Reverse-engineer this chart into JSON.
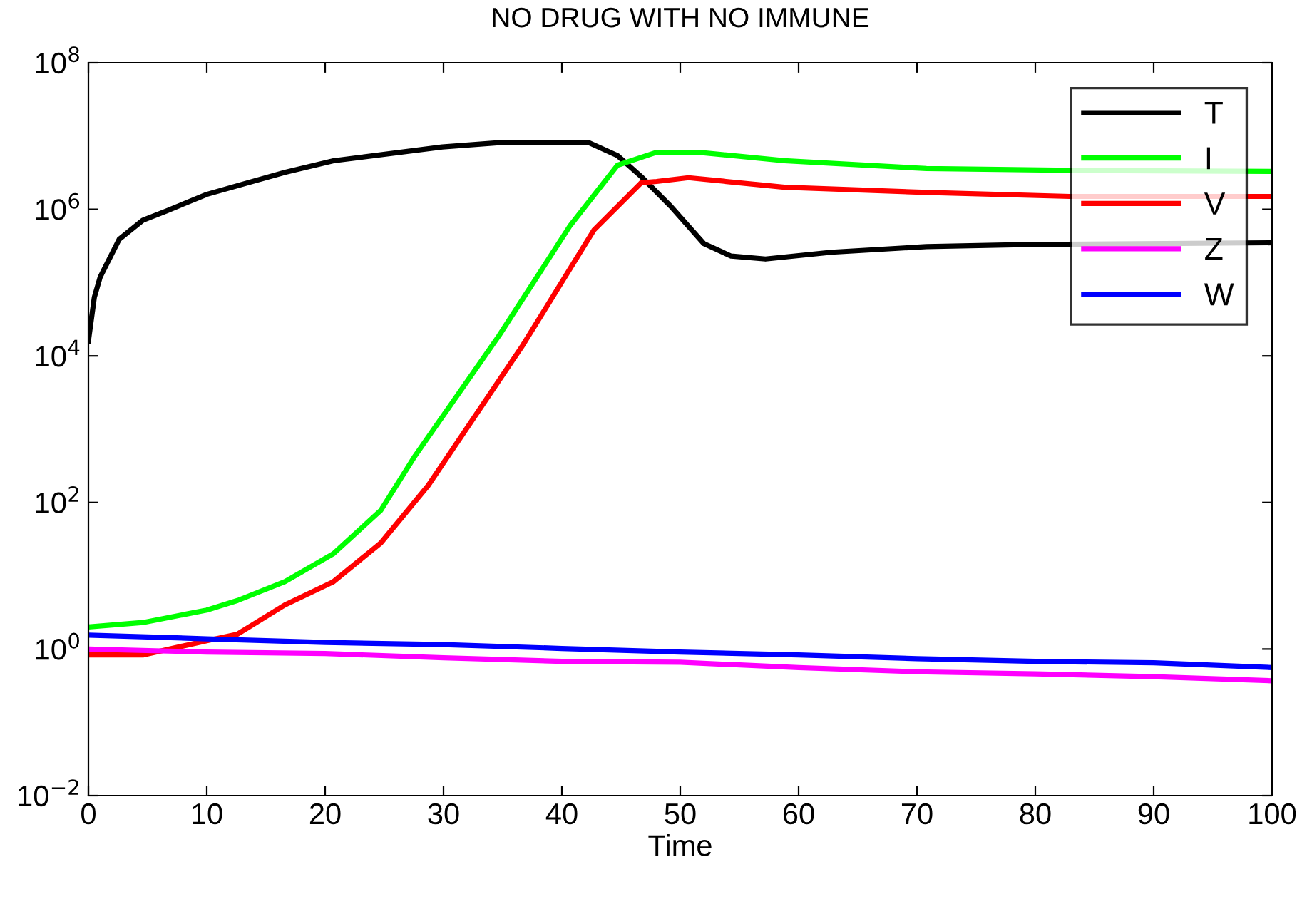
{
  "chart_data": {
    "type": "line",
    "title": "NO DRUG WITH NO IMMUNE",
    "xlabel": "Time",
    "xlim": [
      0,
      100
    ],
    "xticks": [
      0,
      10,
      20,
      30,
      40,
      50,
      60,
      70,
      80,
      90,
      100
    ],
    "log": true,
    "ylim": [
      0.01,
      100000000
    ],
    "yticks": [
      {
        "value": 0.01,
        "label": "10$^{−2}$"
      },
      {
        "value": 1,
        "label": "10$^{0}$"
      },
      {
        "value": 100,
        "label": "10$^{2}$"
      },
      {
        "value": 10000,
        "label": "10$^{4}$"
      },
      {
        "value": 1000000,
        "label": "10$^{6}$"
      },
      {
        "value": 100000000,
        "label": "10$^{8}$"
      }
    ],
    "grid": false,
    "legend": "top right",
    "marker": "none",
    "line_style": "solid",
    "series": [
      {
        "name": "T",
        "color": "#000000",
        "x": [
          0,
          0.5,
          1,
          2.6,
          4.6,
          6.6,
          10,
          16.6,
          20.7,
          29.9,
          34.7,
          42.3,
          44.7,
          46.7,
          49.2,
          52,
          54.3,
          57.2,
          62.8,
          70.8,
          78.9,
          100
        ],
        "values": [
          16000,
          63000,
          120000,
          390000,
          710000,
          950000,
          1600000,
          3200000,
          4600000,
          7100000,
          8100000,
          8100000,
          5400000,
          2800000,
          1100000,
          340000,
          230000,
          210000,
          260000,
          310000,
          330000,
          350000
        ]
      },
      {
        "name": "I",
        "color": "#00ff00",
        "x": [
          0,
          4.6,
          10,
          12.6,
          16.6,
          20.7,
          24.7,
          27.5,
          34.7,
          40.7,
          44.7,
          48,
          52,
          58.8,
          70.8,
          82.9,
          100
        ],
        "values": [
          2.0,
          2.3,
          3.4,
          4.6,
          8.3,
          20,
          78,
          410,
          19000,
          600000,
          4000000,
          6000000,
          5900000,
          4600000,
          3600000,
          3400000,
          3300000
        ]
      },
      {
        "name": "V",
        "color": "#ff0000",
        "x": [
          0,
          4.6,
          10,
          12.6,
          16.6,
          20.7,
          24.7,
          28.7,
          30.3,
          36.7,
          42.7,
          46.7,
          48,
          50.7,
          58.8,
          70.8,
          82.9,
          100
        ],
        "values": [
          0.83,
          0.83,
          1.3,
          1.6,
          4.0,
          8.3,
          28,
          170,
          410,
          14000,
          520000,
          2300000,
          2400000,
          2700000,
          2000000,
          1700000,
          1500000,
          1500000
        ]
      },
      {
        "name": "Z",
        "color": "#ff00ff",
        "x": [
          0,
          10,
          20,
          30,
          40,
          50,
          60,
          70,
          80,
          90,
          100
        ],
        "values": [
          1.0,
          0.91,
          0.87,
          0.76,
          0.68,
          0.66,
          0.56,
          0.49,
          0.46,
          0.42,
          0.37
        ]
      },
      {
        "name": "W",
        "color": "#0000ff",
        "x": [
          0,
          10,
          20,
          30,
          40,
          50,
          60,
          70,
          80,
          90,
          100
        ],
        "values": [
          1.55,
          1.38,
          1.23,
          1.15,
          1.02,
          0.91,
          0.83,
          0.74,
          0.68,
          0.65,
          0.56
        ]
      }
    ]
  }
}
